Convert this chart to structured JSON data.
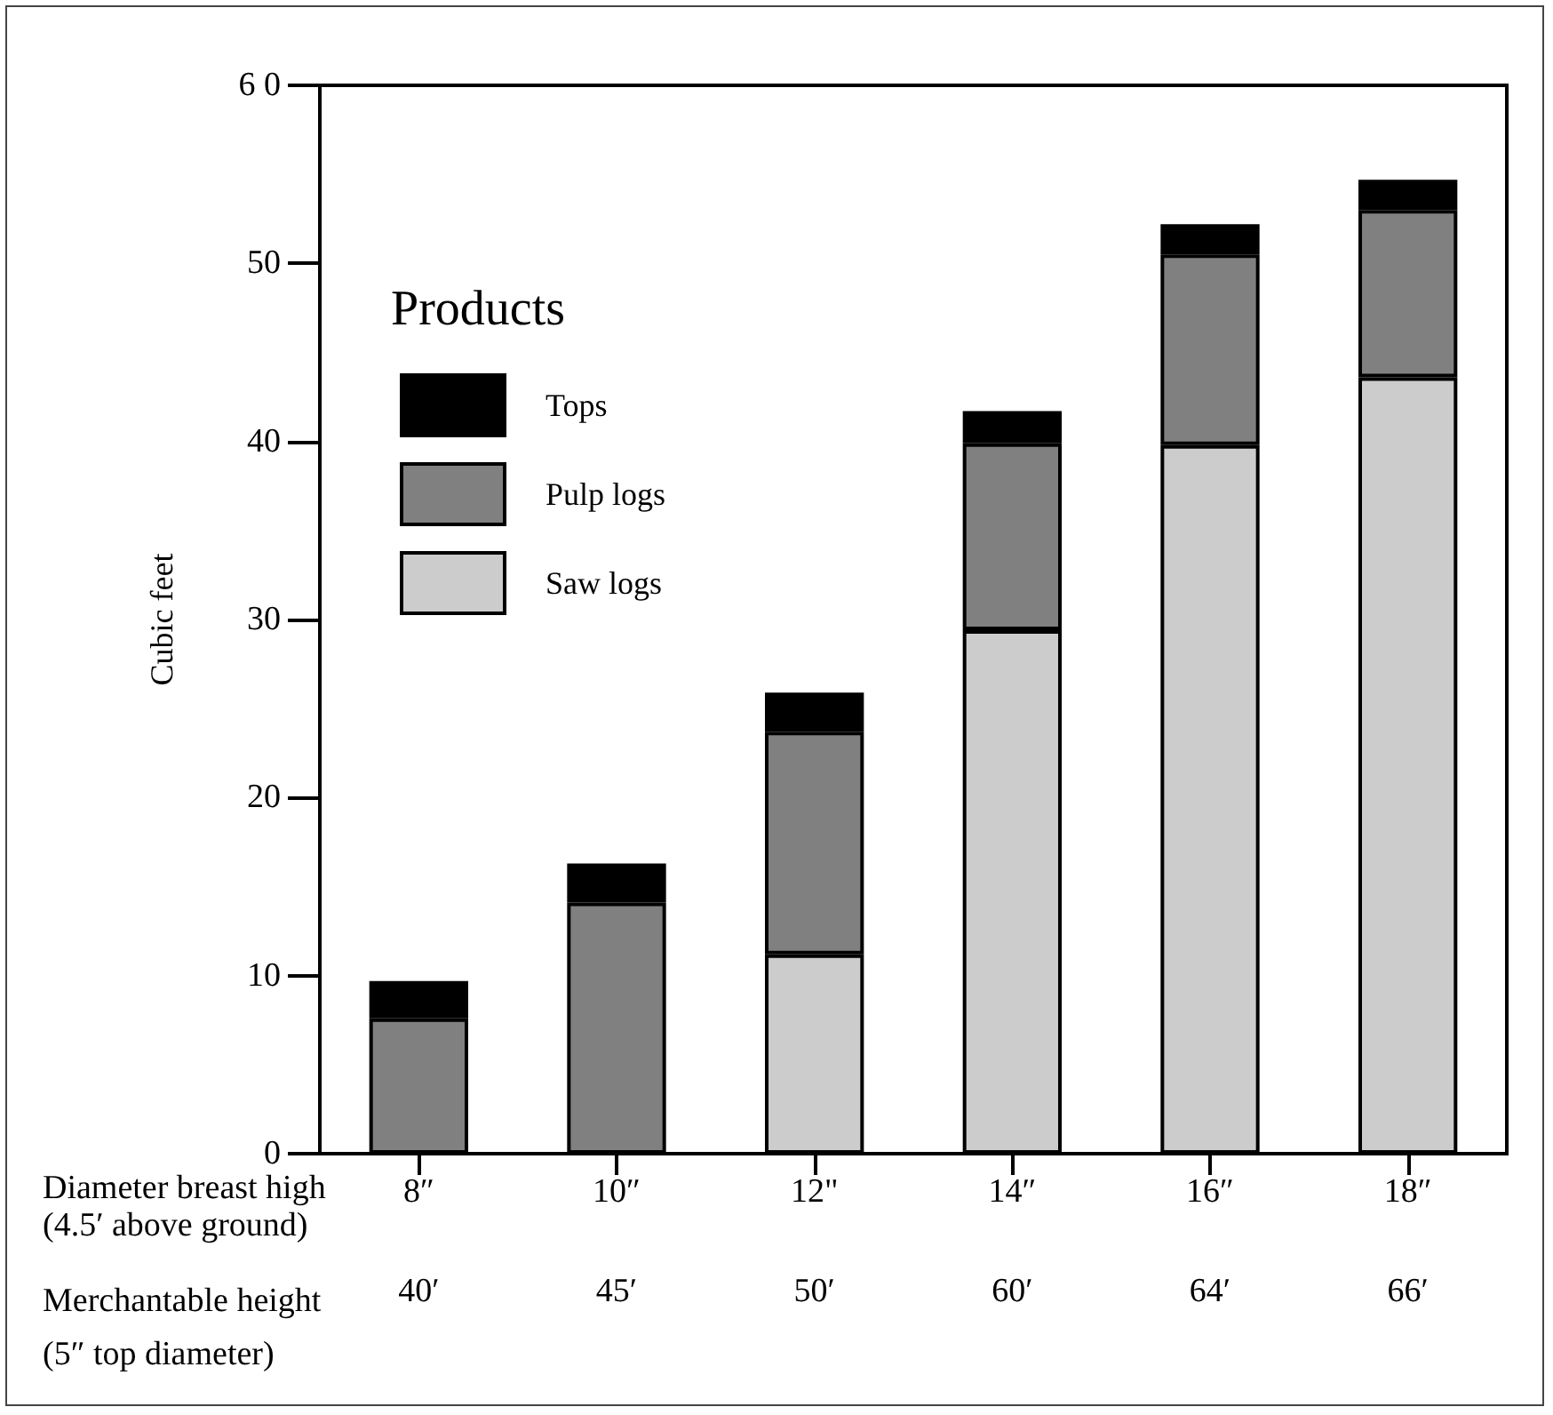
{
  "chart_data": {
    "type": "bar",
    "stacked": true,
    "ylabel": "Cubic feet",
    "legend_title": "Products",
    "legend": "top left",
    "grid": false,
    "categories": [
      "8″",
      "10″",
      "12\"",
      "14″",
      "16″",
      "18″"
    ],
    "series": [
      {
        "name": "Saw logs",
        "color": "#cccccc",
        "values": [
          null,
          null,
          11.2,
          29.4,
          39.8,
          43.6
        ]
      },
      {
        "name": "Pulp logs",
        "color": "#808080",
        "values": [
          7.6,
          14.1,
          12.5,
          10.5,
          10.7,
          9.4
        ]
      },
      {
        "name": "Tops",
        "color": "#000000",
        "values": [
          2.1,
          2.2,
          2.2,
          1.8,
          1.7,
          1.7
        ]
      }
    ],
    "ylim": [
      0,
      60
    ],
    "yticks": [
      0,
      10,
      20,
      30,
      40,
      50,
      {
        "value": 60,
        "label": "6 0"
      }
    ],
    "annotations": [
      "Diameter breast high\n(4.5′ above ground)",
      "Merchantable height\n(5″ top diameter)",
      "40′",
      "45′",
      "50′",
      "60′",
      "64′",
      "66′"
    ]
  }
}
